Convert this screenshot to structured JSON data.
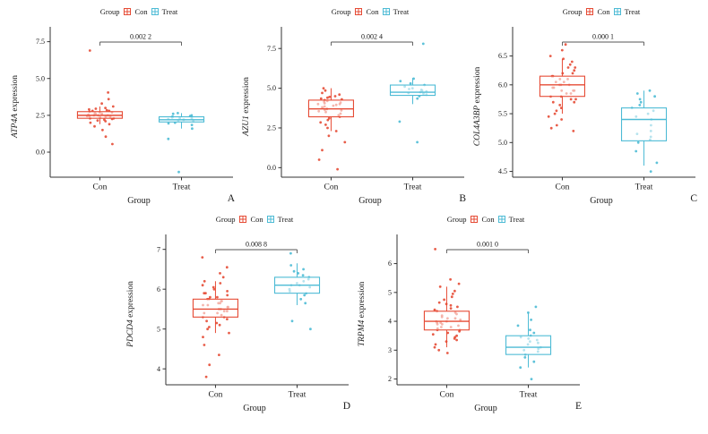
{
  "figure": {
    "background": "#ffffff"
  },
  "colors": {
    "Con": "#E64B35",
    "Treat": "#4DBBD5",
    "axis": "#333333",
    "bracket": "#555555"
  },
  "legend": {
    "title": "Group",
    "entries": [
      "Con",
      "Treat"
    ]
  },
  "chart_data": [
    {
      "type": "boxplot",
      "panel_label": "A",
      "row": 1,
      "ylabel_gene": "ATP4A",
      "ylabel_suffix": " expression",
      "xlabel": "Group",
      "legend_title": "Group",
      "categories": [
        "Con",
        "Treat"
      ],
      "pvalue_label": "0.002 2",
      "ylim": [
        -1.7,
        7.9
      ],
      "yticks": [
        0.0,
        2.5,
        5.0,
        7.5
      ],
      "ytick_labels": [
        "0.0",
        "2.5",
        "5.0",
        "7.5"
      ],
      "series": [
        {
          "name": "Con",
          "box": {
            "whisker_low": 1.9,
            "q1": 2.3,
            "median": 2.5,
            "q3": 2.75,
            "whisker_high": 3.1
          },
          "points": [
            6.9,
            4.05,
            3.6,
            3.3,
            3.1,
            3.0,
            2.95,
            2.9,
            2.85,
            2.8,
            2.8,
            2.75,
            2.7,
            2.7,
            2.65,
            2.6,
            2.6,
            2.55,
            2.5,
            2.5,
            2.5,
            2.45,
            2.45,
            2.4,
            2.4,
            2.35,
            2.3,
            2.3,
            2.25,
            2.2,
            2.15,
            2.1,
            2.0,
            1.9,
            1.75,
            1.5,
            1.05,
            0.55
          ]
        },
        {
          "name": "Treat",
          "box": {
            "whisker_low": 1.6,
            "q1": 2.05,
            "median": 2.2,
            "q3": 2.4,
            "whisker_high": 2.65
          },
          "points": [
            2.65,
            2.6,
            2.5,
            2.45,
            2.4,
            2.4,
            2.35,
            2.3,
            2.3,
            2.25,
            2.2,
            2.2,
            2.15,
            2.1,
            2.0,
            1.95,
            1.85,
            1.6,
            0.9,
            -1.35
          ]
        }
      ]
    },
    {
      "type": "boxplot",
      "panel_label": "B",
      "row": 1,
      "ylabel_gene": "AZU1",
      "ylabel_suffix": " expression",
      "xlabel": "Group",
      "legend_title": "Group",
      "categories": [
        "Con",
        "Treat"
      ],
      "pvalue_label": "0.002 4",
      "ylim": [
        -0.6,
        8.3
      ],
      "yticks": [
        0.0,
        2.5,
        5.0,
        7.5
      ],
      "ytick_labels": [
        "0.0",
        "2.5",
        "5.0",
        "7.5"
      ],
      "series": [
        {
          "name": "Con",
          "box": {
            "whisker_low": 2.3,
            "q1": 3.2,
            "median": 3.7,
            "q3": 4.25,
            "whisker_high": 5.0
          },
          "points": [
            5.0,
            4.85,
            4.7,
            4.6,
            4.5,
            4.45,
            4.4,
            4.35,
            4.3,
            4.25,
            4.2,
            4.15,
            4.1,
            4.05,
            4.0,
            4.0,
            3.95,
            3.9,
            3.85,
            3.8,
            3.75,
            3.7,
            3.7,
            3.65,
            3.6,
            3.55,
            3.5,
            3.4,
            3.3,
            3.2,
            3.1,
            3.0,
            2.85,
            2.7,
            2.5,
            2.3,
            2.0,
            1.6,
            1.1,
            0.5,
            -0.1
          ]
        },
        {
          "name": "Treat",
          "box": {
            "whisker_low": 4.0,
            "q1": 4.55,
            "median": 4.75,
            "q3": 5.2,
            "whisker_high": 5.65
          },
          "points": [
            7.8,
            5.6,
            5.45,
            5.3,
            5.2,
            5.1,
            5.0,
            4.95,
            4.9,
            4.85,
            4.8,
            4.75,
            4.7,
            4.65,
            4.6,
            4.5,
            4.35,
            2.9,
            1.6
          ]
        }
      ]
    },
    {
      "type": "boxplot",
      "panel_label": "C",
      "row": 1,
      "ylabel_gene": "COL4A3BP",
      "ylabel_suffix": " expression",
      "xlabel": "Group",
      "legend_title": "Group",
      "categories": [
        "Con",
        "Treat"
      ],
      "pvalue_label": "0.000 1",
      "ylim": [
        4.4,
        6.85
      ],
      "yticks": [
        4.5,
        5.0,
        5.5,
        6.0,
        6.5
      ],
      "ytick_labels": [
        "4.5",
        "5.0",
        "5.5",
        "6.0",
        "6.5"
      ],
      "series": [
        {
          "name": "Con",
          "box": {
            "whisker_low": 5.5,
            "q1": 5.8,
            "median": 6.0,
            "q3": 6.15,
            "whisker_high": 6.45
          },
          "points": [
            6.7,
            6.6,
            6.5,
            6.45,
            6.4,
            6.35,
            6.3,
            6.3,
            6.25,
            6.2,
            6.2,
            6.15,
            6.15,
            6.1,
            6.1,
            6.05,
            6.05,
            6.0,
            6.0,
            6.0,
            5.95,
            5.95,
            5.9,
            5.9,
            5.9,
            5.85,
            5.85,
            5.8,
            5.8,
            5.75,
            5.75,
            5.7,
            5.7,
            5.65,
            5.6,
            5.55,
            5.5,
            5.45,
            5.4,
            5.3,
            5.25,
            5.2
          ]
        },
        {
          "name": "Treat",
          "box": {
            "whisker_low": 4.6,
            "q1": 5.03,
            "median": 5.4,
            "q3": 5.6,
            "whisker_high": 5.9
          },
          "points": [
            5.9,
            5.85,
            5.8,
            5.75,
            5.7,
            5.65,
            5.6,
            5.55,
            5.5,
            5.45,
            5.4,
            5.3,
            5.2,
            5.15,
            5.1,
            5.05,
            5.0,
            4.85,
            4.65,
            4.5
          ]
        }
      ]
    },
    {
      "type": "boxplot",
      "panel_label": "D",
      "row": 2,
      "ylabel_gene": "PDCD4",
      "ylabel_suffix": " expression",
      "xlabel": "Group",
      "legend_title": "Group",
      "categories": [
        "Con",
        "Treat"
      ],
      "pvalue_label": "0.008 8",
      "ylim": [
        3.6,
        7.15
      ],
      "yticks": [
        4,
        5,
        6,
        7
      ],
      "ytick_labels": [
        "4",
        "5",
        "6",
        "7"
      ],
      "series": [
        {
          "name": "Con",
          "box": {
            "whisker_low": 4.9,
            "q1": 5.3,
            "median": 5.5,
            "q3": 5.75,
            "whisker_high": 6.2
          },
          "points": [
            6.8,
            6.55,
            6.4,
            6.3,
            6.2,
            6.15,
            6.1,
            6.05,
            6.0,
            5.95,
            5.9,
            5.9,
            5.85,
            5.8,
            5.8,
            5.75,
            5.75,
            5.7,
            5.7,
            5.65,
            5.65,
            5.6,
            5.6,
            5.55,
            5.55,
            5.5,
            5.5,
            5.45,
            5.45,
            5.4,
            5.4,
            5.35,
            5.3,
            5.3,
            5.25,
            5.2,
            5.15,
            5.1,
            5.05,
            5.0,
            4.9,
            4.8,
            4.6,
            4.35,
            4.1,
            3.8
          ]
        },
        {
          "name": "Treat",
          "box": {
            "whisker_low": 5.6,
            "q1": 5.9,
            "median": 6.1,
            "q3": 6.3,
            "whisker_high": 6.65
          },
          "points": [
            6.9,
            6.6,
            6.5,
            6.45,
            6.4,
            6.35,
            6.3,
            6.25,
            6.2,
            6.15,
            6.1,
            6.1,
            6.05,
            6.0,
            5.95,
            5.9,
            5.85,
            5.75,
            5.65,
            5.2,
            5.0
          ]
        }
      ]
    },
    {
      "type": "boxplot",
      "panel_label": "E",
      "row": 2,
      "ylabel_gene": "TRPM4",
      "ylabel_suffix": " expression",
      "xlabel": "Group",
      "legend_title": "Group",
      "categories": [
        "Con",
        "Treat"
      ],
      "pvalue_label": "0.001 0",
      "ylim": [
        1.8,
        6.7
      ],
      "yticks": [
        2,
        3,
        4,
        5,
        6
      ],
      "ytick_labels": [
        "2",
        "3",
        "4",
        "5",
        "6"
      ],
      "series": [
        {
          "name": "Con",
          "box": {
            "whisker_low": 3.1,
            "q1": 3.7,
            "median": 4.0,
            "q3": 4.35,
            "whisker_high": 5.2
          },
          "points": [
            6.5,
            5.45,
            5.3,
            5.2,
            5.05,
            4.95,
            4.85,
            4.75,
            4.65,
            4.6,
            4.55,
            4.5,
            4.45,
            4.4,
            4.35,
            4.3,
            4.25,
            4.2,
            4.15,
            4.1,
            4.1,
            4.05,
            4.0,
            4.0,
            3.95,
            3.95,
            3.9,
            3.9,
            3.85,
            3.8,
            3.8,
            3.75,
            3.7,
            3.7,
            3.65,
            3.6,
            3.55,
            3.5,
            3.45,
            3.4,
            3.35,
            3.3,
            3.2,
            3.1,
            3.0,
            2.9
          ]
        },
        {
          "name": "Treat",
          "box": {
            "whisker_low": 2.4,
            "q1": 2.85,
            "median": 3.1,
            "q3": 3.5,
            "whisker_high": 4.3
          },
          "points": [
            4.5,
            4.3,
            4.05,
            3.85,
            3.7,
            3.6,
            3.5,
            3.45,
            3.4,
            3.35,
            3.3,
            3.25,
            3.2,
            3.1,
            3.05,
            3.0,
            2.95,
            2.85,
            2.75,
            2.6,
            2.4,
            2.0
          ]
        }
      ]
    }
  ]
}
